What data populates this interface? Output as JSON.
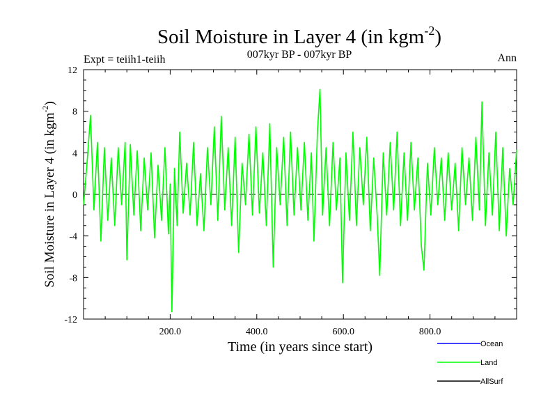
{
  "chart_data": {
    "type": "line",
    "title_main": "Soil Moisture in Layer 4 (in kgm",
    "title_sup": "-2",
    "title_close": ")",
    "subtitle": "007kyr BP - 007kyr BP",
    "top_left_label": "Expt = teiih1-teiih",
    "top_right_label": "Ann",
    "xlabel": "Time (in years since start)",
    "ylabel_main": "Soil Moisture in Layer 4 (in kgm",
    "ylabel_sup": "-2",
    "ylabel_close": ")",
    "xlim": [
      0,
      1000
    ],
    "ylim": [
      -12,
      12
    ],
    "x_ticks": [
      200,
      400,
      600,
      800
    ],
    "x_tick_labels": [
      "200.0",
      "400.0",
      "600.0",
      "800.0"
    ],
    "y_ticks": [
      12,
      8,
      4,
      0,
      -4,
      -8,
      -12
    ],
    "y_tick_labels": [
      "12",
      "8",
      "4",
      "0",
      "-4",
      "-8",
      "-12"
    ],
    "zero_line": "dashed",
    "grid": false,
    "legend_position": "bottom-right",
    "legend": [
      {
        "name": "Ocean",
        "color": "#0000ff"
      },
      {
        "name": "Land",
        "color": "#00ff00"
      },
      {
        "name": "AllSurf",
        "color": "#000000"
      }
    ],
    "series": [
      {
        "name": "Land",
        "color": "#00ff00",
        "points": [
          [
            0,
            -1.0
          ],
          [
            8,
            3.0
          ],
          [
            16,
            7.6
          ],
          [
            24,
            -1.5
          ],
          [
            32,
            5.0
          ],
          [
            40,
            -4.5
          ],
          [
            48,
            4.5
          ],
          [
            56,
            -2.5
          ],
          [
            64,
            3.5
          ],
          [
            72,
            -3.0
          ],
          [
            80,
            4.5
          ],
          [
            88,
            -1.0
          ],
          [
            96,
            5.0
          ],
          [
            100,
            -6.3
          ],
          [
            108,
            4.8
          ],
          [
            116,
            -2.0
          ],
          [
            124,
            4.2
          ],
          [
            132,
            -3.5
          ],
          [
            140,
            3.5
          ],
          [
            148,
            -1.5
          ],
          [
            156,
            4.0
          ],
          [
            164,
            -4.2
          ],
          [
            172,
            2.8
          ],
          [
            180,
            -2.5
          ],
          [
            188,
            4.5
          ],
          [
            196,
            -3.8
          ],
          [
            200,
            1.0
          ],
          [
            204,
            -11.3
          ],
          [
            210,
            2.5
          ],
          [
            216,
            -3.0
          ],
          [
            222,
            6.0
          ],
          [
            230,
            -1.8
          ],
          [
            238,
            3.0
          ],
          [
            246,
            -2.0
          ],
          [
            254,
            5.0
          ],
          [
            262,
            -3.0
          ],
          [
            270,
            2.0
          ],
          [
            278,
            -3.5
          ],
          [
            286,
            4.5
          ],
          [
            294,
            -1.0
          ],
          [
            302,
            6.5
          ],
          [
            310,
            -2.5
          ],
          [
            318,
            7.5
          ],
          [
            326,
            -1.5
          ],
          [
            334,
            4.5
          ],
          [
            342,
            -3.0
          ],
          [
            350,
            5.5
          ],
          [
            358,
            -5.6
          ],
          [
            366,
            3.0
          ],
          [
            374,
            -1.0
          ],
          [
            382,
            5.8
          ],
          [
            390,
            -2.0
          ],
          [
            398,
            6.5
          ],
          [
            406,
            -1.8
          ],
          [
            414,
            4.0
          ],
          [
            422,
            -3.0
          ],
          [
            430,
            6.8
          ],
          [
            438,
            -7.0
          ],
          [
            446,
            4.5
          ],
          [
            454,
            -1.0
          ],
          [
            462,
            5.5
          ],
          [
            470,
            -3.0
          ],
          [
            478,
            6.0
          ],
          [
            486,
            -2.0
          ],
          [
            494,
            4.5
          ],
          [
            502,
            -1.5
          ],
          [
            510,
            5.0
          ],
          [
            518,
            -2.5
          ],
          [
            526,
            4.0
          ],
          [
            532,
            -4.5
          ],
          [
            540,
            6.0
          ],
          [
            546,
            10.1
          ],
          [
            552,
            -2.0
          ],
          [
            560,
            4.5
          ],
          [
            568,
            -3.0
          ],
          [
            576,
            5.0
          ],
          [
            584,
            -1.5
          ],
          [
            592,
            3.5
          ],
          [
            598,
            -8.5
          ],
          [
            606,
            4.0
          ],
          [
            614,
            -2.5
          ],
          [
            622,
            6.0
          ],
          [
            630,
            -3.0
          ],
          [
            638,
            4.5
          ],
          [
            646,
            -1.0
          ],
          [
            654,
            5.5
          ],
          [
            662,
            -3.5
          ],
          [
            670,
            3.5
          ],
          [
            678,
            -2.0
          ],
          [
            684,
            -7.8
          ],
          [
            692,
            4.0
          ],
          [
            700,
            -2.0
          ],
          [
            708,
            5.0
          ],
          [
            716,
            -1.5
          ],
          [
            724,
            6.0
          ],
          [
            732,
            -3.0
          ],
          [
            740,
            4.0
          ],
          [
            748,
            -2.5
          ],
          [
            756,
            5.0
          ],
          [
            764,
            -1.5
          ],
          [
            772,
            3.5
          ],
          [
            780,
            -5.0
          ],
          [
            786,
            -7.3
          ],
          [
            794,
            3.0
          ],
          [
            802,
            -2.0
          ],
          [
            810,
            4.5
          ],
          [
            818,
            -1.0
          ],
          [
            826,
            3.5
          ],
          [
            834,
            -2.5
          ],
          [
            842,
            4.0
          ],
          [
            850,
            -1.5
          ],
          [
            858,
            3.0
          ],
          [
            866,
            -3.5
          ],
          [
            874,
            4.5
          ],
          [
            882,
            -1.0
          ],
          [
            890,
            3.5
          ],
          [
            898,
            -2.5
          ],
          [
            906,
            5.5
          ],
          [
            914,
            -1.5
          ],
          [
            920,
            8.9
          ],
          [
            928,
            -3.0
          ],
          [
            936,
            4.0
          ],
          [
            944,
            -2.0
          ],
          [
            952,
            6.0
          ],
          [
            960,
            -3.5
          ],
          [
            968,
            4.5
          ],
          [
            976,
            -4.0
          ],
          [
            984,
            2.5
          ],
          [
            992,
            -1.0
          ],
          [
            1000,
            4.3
          ]
        ]
      }
    ]
  }
}
